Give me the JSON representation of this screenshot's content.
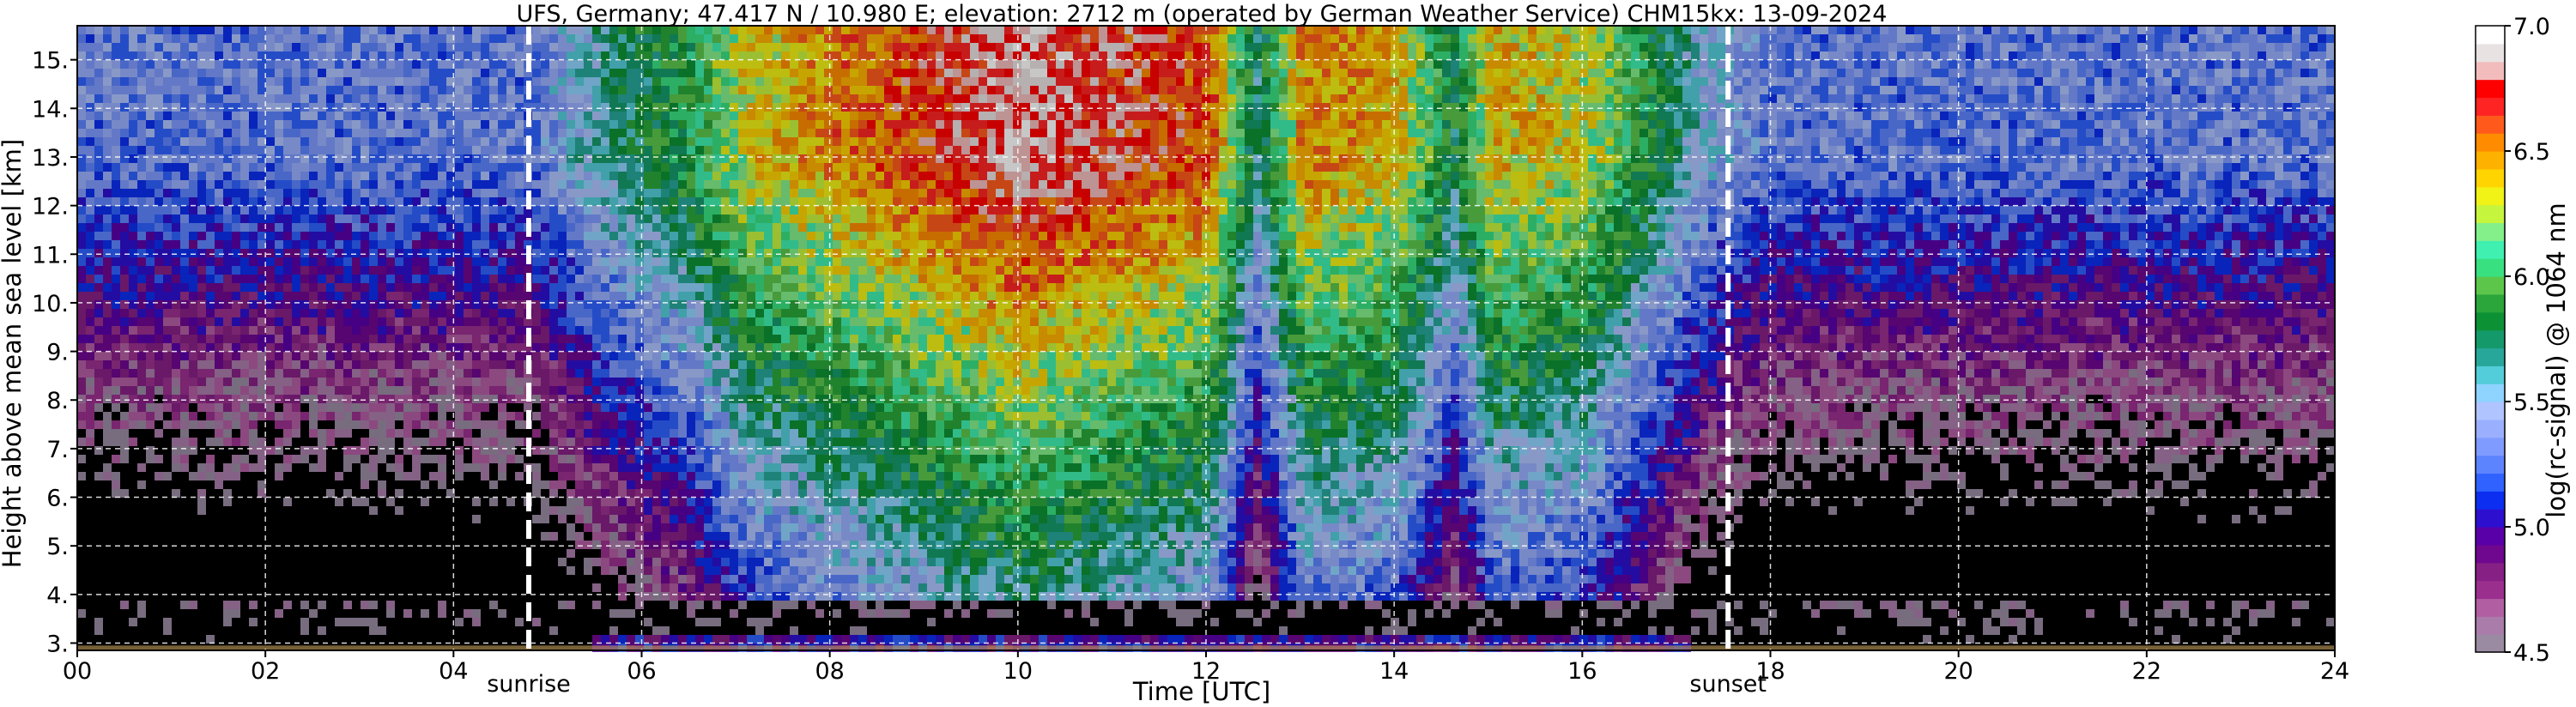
{
  "chart_data": {
    "type": "heatmap",
    "title": "UFS, Germany; 47.417 N / 10.980 E; elevation: 2712 m  (operated by German Weather Service)    CHM15kx: 13-09-2024",
    "xlabel": "Time [UTC]",
    "ylabel": "Height above mean sea level [km]",
    "colorbar_label": "log(rc-signal) @ 1064 nm",
    "xlim": [
      0,
      24
    ],
    "ylim": [
      2.85,
      15.7
    ],
    "x_ticks": [
      0,
      2,
      4,
      6,
      8,
      10,
      12,
      14,
      16,
      18,
      20,
      22,
      24
    ],
    "x_tick_labels": [
      "00",
      "02",
      "04",
      "06",
      "08",
      "10",
      "12",
      "14",
      "16",
      "18",
      "20",
      "22",
      "24"
    ],
    "y_ticks": [
      3,
      4,
      5,
      6,
      7,
      8,
      9,
      10,
      11,
      12,
      13,
      14,
      15
    ],
    "y_tick_labels": [
      "3.",
      "4.",
      "5.",
      "6.",
      "7.",
      "8.",
      "9.",
      "10.",
      "11.",
      "12.",
      "13.",
      "14.",
      "15."
    ],
    "grid": true,
    "colorbar_range": [
      4.5,
      7.0
    ],
    "colorbar_ticks": [
      4.5,
      5.0,
      5.5,
      6.0,
      6.5,
      7.0
    ],
    "colorbar_tick_labels": [
      "4.5",
      "5.0",
      "5.5",
      "6.0",
      "6.5",
      "7.0"
    ],
    "colormap": [
      "#9a8ba3",
      "#a97caa",
      "#b25ea3",
      "#9b2f8e",
      "#862085",
      "#6f078f",
      "#5a00a8",
      "#2d0fd0",
      "#0b2ef0",
      "#2f62ff",
      "#5d84ff",
      "#7f9bff",
      "#9ab0ff",
      "#b0c4ff",
      "#8fd3ff",
      "#53cdd9",
      "#27a79a",
      "#149a6a",
      "#0d9135",
      "#2aa63a",
      "#5cc64b",
      "#38e080",
      "#3ff0b0",
      "#83f08a",
      "#c6f53e",
      "#f1f215",
      "#ffd400",
      "#ffb100",
      "#ff8c00",
      "#ff5a1c",
      "#ff2424",
      "#ff0000",
      "#f2bcbc",
      "#e9e2e2",
      "#ffffff"
    ],
    "markers": [
      {
        "label": "sunrise",
        "x": 4.8
      },
      {
        "label": "sunset",
        "x": 17.55
      }
    ],
    "signal_profile": [
      {
        "t": 0,
        "v": 5.3
      },
      {
        "t": 4.8,
        "v": 5.3
      },
      {
        "t": 5.5,
        "v": 5.65
      },
      {
        "t": 6.5,
        "v": 5.95
      },
      {
        "t": 7.0,
        "v": 6.3
      },
      {
        "t": 8.0,
        "v": 6.5
      },
      {
        "t": 10.0,
        "v": 6.85
      },
      {
        "t": 12.0,
        "v": 6.6
      },
      {
        "t": 12.5,
        "v": 5.7
      },
      {
        "t": 13.0,
        "v": 6.5
      },
      {
        "t": 14.0,
        "v": 6.4
      },
      {
        "t": 14.6,
        "v": 5.8
      },
      {
        "t": 15.0,
        "v": 6.4
      },
      {
        "t": 16.0,
        "v": 6.3
      },
      {
        "t": 17.3,
        "v": 5.5
      },
      {
        "t": 18.0,
        "v": 5.3
      },
      {
        "t": 24,
        "v": 5.3
      }
    ]
  }
}
